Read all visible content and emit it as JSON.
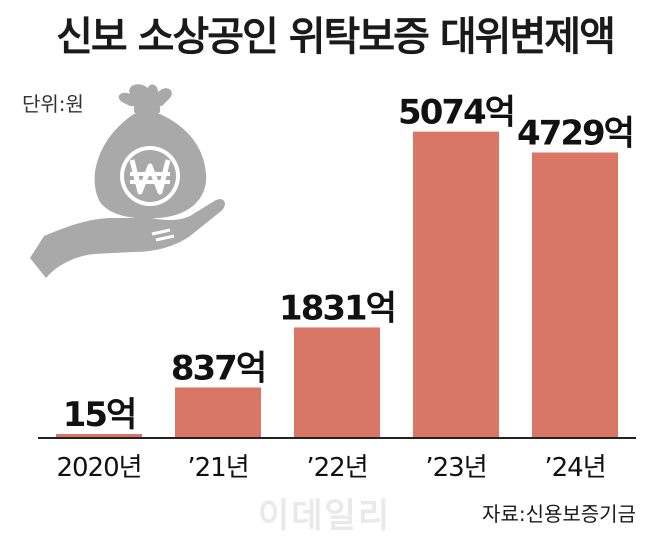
{
  "header": {
    "title": "신보 소상공인 위탁보증 대위변제액",
    "unit": "단위:원"
  },
  "footer": {
    "source": "자료:신용보증기금",
    "watermark": "이데일리"
  },
  "illustration": {
    "icon": "hand-money-bag-icon",
    "color": "#a9a9a9"
  },
  "colors": {
    "bar": "#d97665",
    "axis": "#222222"
  },
  "chart_data": {
    "type": "bar",
    "title": "신보 소상공인 위탁보증 대위변제액",
    "unit": "억",
    "categories": [
      "2020년",
      "’21년",
      "’22년",
      "’23년",
      "’24년"
    ],
    "values": [
      15,
      837,
      1831,
      5074,
      4729
    ],
    "value_labels": [
      "15억",
      "837억",
      "1831억",
      "5074억",
      "4729억"
    ],
    "ylim": [
      0,
      5300
    ],
    "grid": false,
    "legend": "none"
  }
}
